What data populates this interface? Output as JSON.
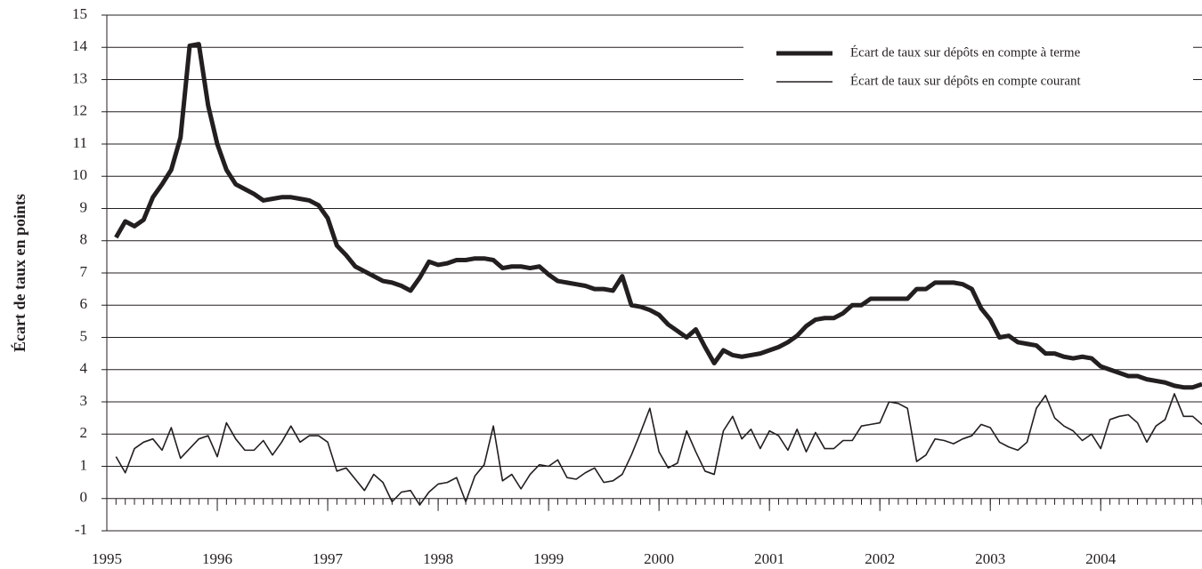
{
  "chart_data": {
    "type": "line",
    "y_label": "Écart de taux en points",
    "legend": "upper right",
    "grid": true,
    "ylim": [
      -1,
      15
    ],
    "yticks": [
      -1,
      0,
      1,
      2,
      3,
      4,
      5,
      6,
      7,
      8,
      9,
      10,
      11,
      12,
      13,
      14,
      15
    ],
    "xlim": [
      1995,
      2004.917
    ],
    "xticks": [
      1995,
      1996,
      1997,
      1998,
      1999,
      2000,
      2001,
      2002,
      2003,
      2004
    ],
    "x": [
      1995.083,
      1995.167,
      1995.25,
      1995.333,
      1995.417,
      1995.5,
      1995.583,
      1995.667,
      1995.75,
      1995.833,
      1995.917,
      1996,
      1996.083,
      1996.167,
      1996.25,
      1996.333,
      1996.417,
      1996.5,
      1996.583,
      1996.667,
      1996.75,
      1996.833,
      1996.917,
      1997,
      1997.083,
      1997.167,
      1997.25,
      1997.333,
      1997.417,
      1997.5,
      1997.583,
      1997.667,
      1997.75,
      1997.833,
      1997.917,
      1998,
      1998.083,
      1998.167,
      1998.25,
      1998.333,
      1998.417,
      1998.5,
      1998.583,
      1998.667,
      1998.75,
      1998.833,
      1998.917,
      1999,
      1999.083,
      1999.167,
      1999.25,
      1999.333,
      1999.417,
      1999.5,
      1999.583,
      1999.667,
      1999.75,
      1999.833,
      1999.917,
      2000,
      2000.083,
      2000.167,
      2000.25,
      2000.333,
      2000.417,
      2000.5,
      2000.583,
      2000.667,
      2000.75,
      2000.833,
      2000.917,
      2001,
      2001.083,
      2001.167,
      2001.25,
      2001.333,
      2001.417,
      2001.5,
      2001.583,
      2001.667,
      2001.75,
      2001.833,
      2001.917,
      2002,
      2002.083,
      2002.167,
      2002.25,
      2002.333,
      2002.417,
      2002.5,
      2002.583,
      2002.667,
      2002.75,
      2002.833,
      2002.917,
      2003,
      2003.083,
      2003.167,
      2003.25,
      2003.333,
      2003.417,
      2003.5,
      2003.583,
      2003.667,
      2003.75,
      2003.833,
      2003.917,
      2004,
      2004.083,
      2004.167,
      2004.25,
      2004.333,
      2004.417,
      2004.5,
      2004.583,
      2004.667,
      2004.75,
      2004.833,
      2004.917
    ],
    "series": [
      {
        "name": "Écart de taux sur dépôts en compte à terme",
        "color": "#231f20",
        "values": [
          8.1,
          8.6,
          8.45,
          8.65,
          9.35,
          9.75,
          10.2,
          11.2,
          14.05,
          14.1,
          12.2,
          11.0,
          10.2,
          9.75,
          9.6,
          9.45,
          9.25,
          9.3,
          9.35,
          9.35,
          9.3,
          9.25,
          9.1,
          8.7,
          7.85,
          7.55,
          7.2,
          7.05,
          6.9,
          6.75,
          6.7,
          6.6,
          6.45,
          6.85,
          7.35,
          7.25,
          7.3,
          7.4,
          7.4,
          7.45,
          7.45,
          7.4,
          7.15,
          7.2,
          7.2,
          7.15,
          7.2,
          6.95,
          6.75,
          6.7,
          6.65,
          6.6,
          6.5,
          6.5,
          6.45,
          6.9,
          6.0,
          5.95,
          5.85,
          5.7,
          5.4,
          5.2,
          5.0,
          5.25,
          4.7,
          4.2,
          4.6,
          4.45,
          4.4,
          4.45,
          4.5,
          4.6,
          4.7,
          4.85,
          5.05,
          5.35,
          5.55,
          5.6,
          5.6,
          5.75,
          6.0,
          6.0,
          6.2,
          6.2,
          6.2,
          6.2,
          6.2,
          6.5,
          6.5,
          6.7,
          6.7,
          6.7,
          6.65,
          6.5,
          5.9,
          5.55,
          5.0,
          5.05,
          4.85,
          4.8,
          4.75,
          4.5,
          4.5,
          4.4,
          4.35,
          4.4,
          4.35,
          4.1,
          4.0,
          3.9,
          3.8,
          3.8,
          3.7,
          3.65,
          3.6,
          3.5,
          3.45,
          3.45,
          3.55
        ]
      },
      {
        "name": "Écart de taux sur dépôts en compte courant",
        "color": "#231f20",
        "values": [
          1.3,
          0.8,
          1.55,
          1.75,
          1.85,
          1.5,
          2.2,
          1.25,
          1.55,
          1.85,
          1.95,
          1.3,
          2.35,
          1.85,
          1.5,
          1.5,
          1.8,
          1.35,
          1.75,
          2.25,
          1.75,
          1.95,
          1.95,
          1.75,
          0.85,
          0.95,
          0.6,
          0.25,
          0.75,
          0.5,
          -0.1,
          0.2,
          0.25,
          -0.2,
          0.2,
          0.45,
          0.5,
          0.65,
          -0.1,
          0.7,
          1.05,
          2.25,
          0.55,
          0.75,
          0.3,
          0.75,
          1.05,
          1.0,
          1.2,
          0.65,
          0.6,
          0.8,
          0.95,
          0.5,
          0.55,
          0.75,
          1.35,
          2.05,
          2.8,
          1.45,
          0.95,
          1.1,
          2.1,
          1.45,
          0.85,
          0.75,
          2.1,
          2.55,
          1.85,
          2.15,
          1.55,
          2.1,
          1.95,
          1.5,
          2.15,
          1.45,
          2.05,
          1.55,
          1.55,
          1.8,
          1.8,
          2.25,
          2.3,
          2.35,
          3.0,
          2.95,
          2.8,
          1.15,
          1.35,
          1.85,
          1.8,
          1.7,
          1.85,
          1.95,
          2.3,
          2.2,
          1.75,
          1.6,
          1.5,
          1.75,
          2.8,
          3.2,
          2.5,
          2.25,
          2.1,
          1.8,
          2.0,
          1.55,
          2.45,
          2.55,
          2.6,
          2.35,
          1.75,
          2.25,
          2.45,
          3.25,
          2.55,
          2.55,
          2.3
        ]
      }
    ]
  }
}
